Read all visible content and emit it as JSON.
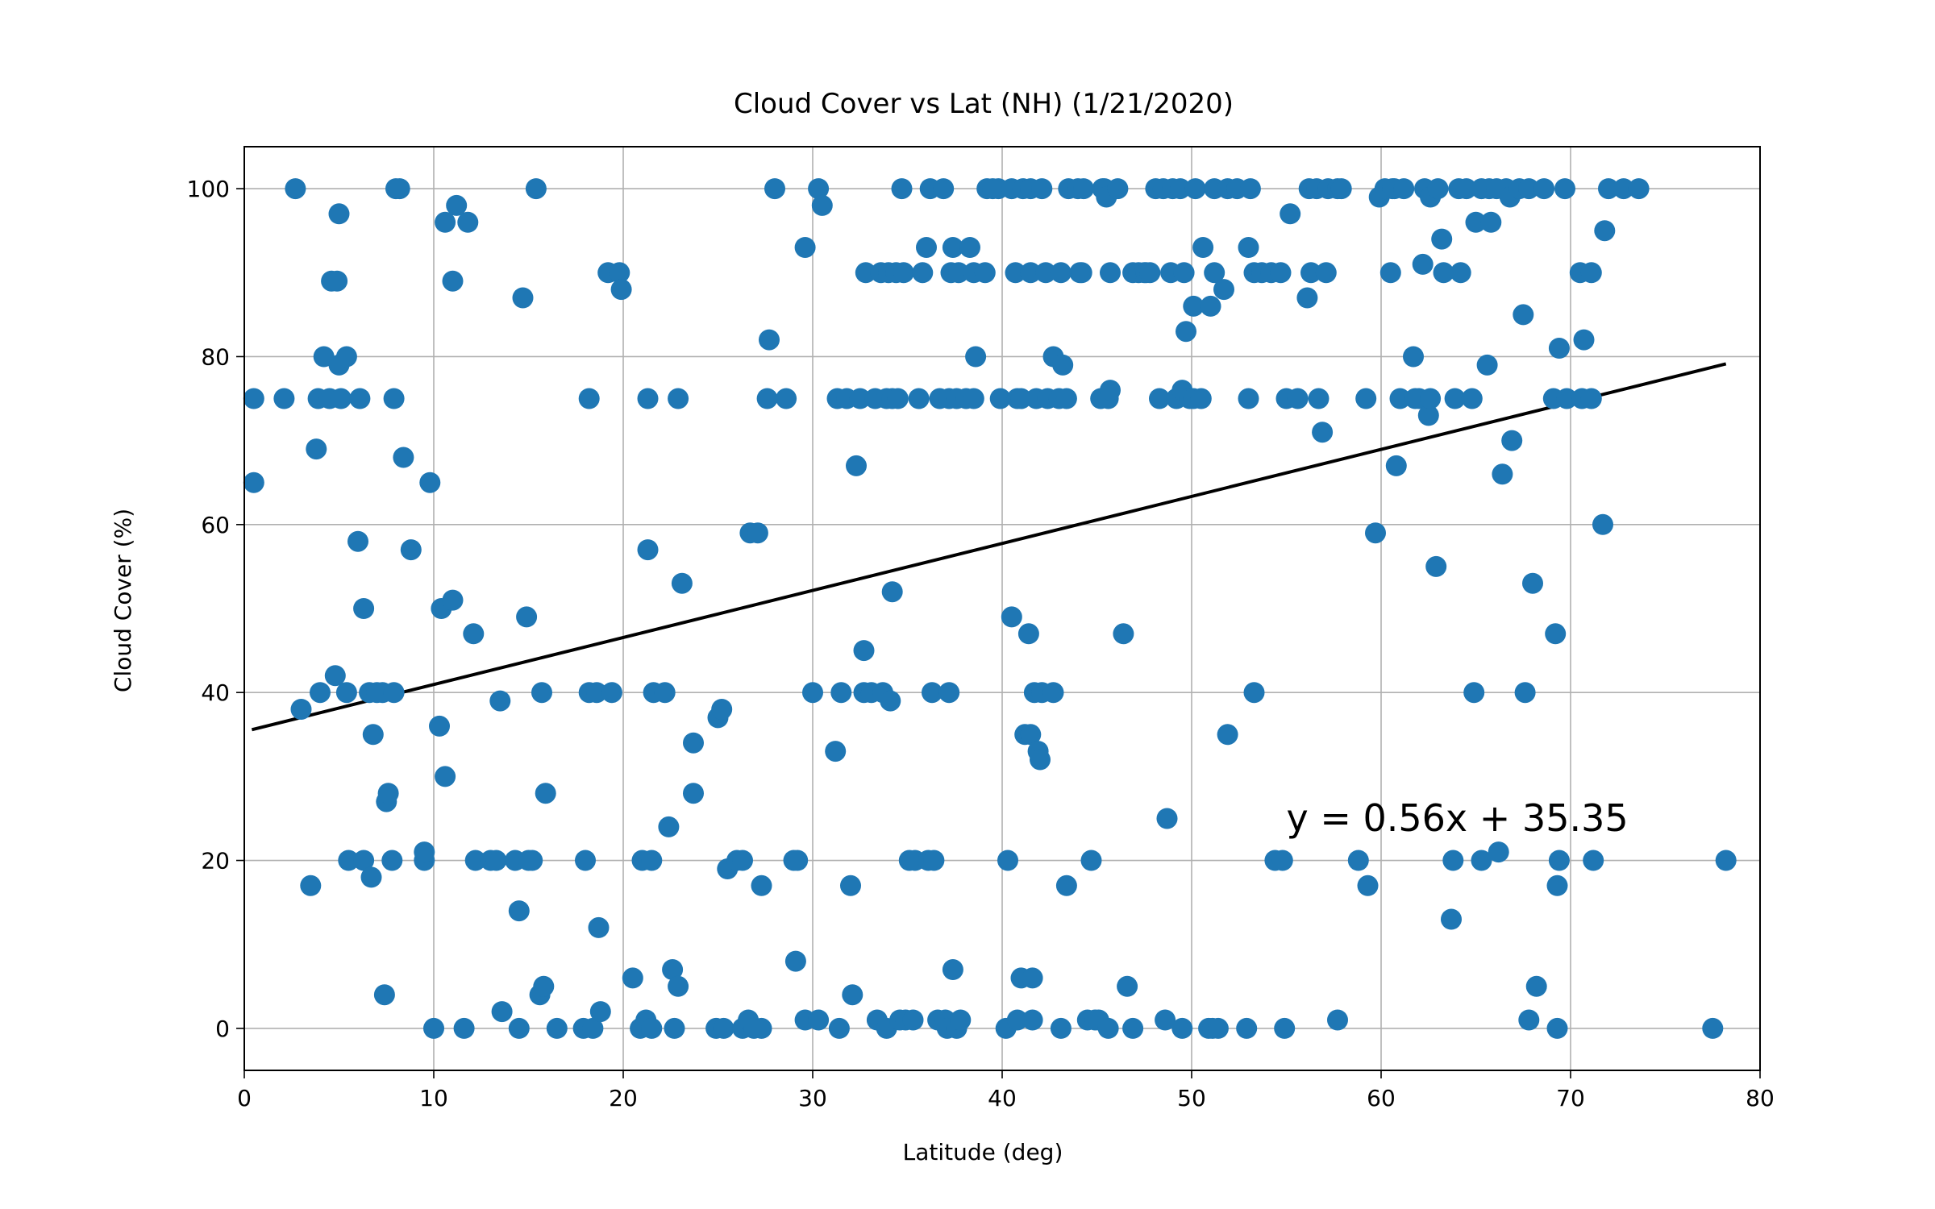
{
  "chart_data": {
    "type": "scatter",
    "title": "Cloud Cover vs Lat (NH) (1/21/2020)",
    "xlabel": "Latitude (deg)",
    "ylabel": "Cloud Cover (%)",
    "xlim": [
      0,
      80
    ],
    "ylim": [
      -5,
      105
    ],
    "xticks": [
      0,
      10,
      20,
      30,
      40,
      50,
      60,
      70,
      80
    ],
    "yticks": [
      0,
      20,
      40,
      60,
      80,
      100
    ],
    "grid": true,
    "point_color": "#1f77b4",
    "line_color": "#000000",
    "regression": {
      "slope": 0.56,
      "intercept": 35.35,
      "x_range": [
        0.4,
        78.2
      ]
    },
    "annotation": {
      "text": "y = 0.56x + 35.35",
      "x": 55,
      "y": 23.5
    },
    "points": [
      [
        0.5,
        75
      ],
      [
        0.5,
        65
      ],
      [
        2.1,
        75
      ],
      [
        2.7,
        100
      ],
      [
        3,
        38
      ],
      [
        3.5,
        17
      ],
      [
        3.8,
        69
      ],
      [
        3.9,
        75
      ],
      [
        4,
        40
      ],
      [
        4.2,
        80
      ],
      [
        4.5,
        75
      ],
      [
        4.6,
        89
      ],
      [
        4.8,
        42
      ],
      [
        4.9,
        89
      ],
      [
        5,
        97
      ],
      [
        5,
        79
      ],
      [
        5.1,
        75
      ],
      [
        5.4,
        80
      ],
      [
        5.4,
        40
      ],
      [
        5.5,
        20
      ],
      [
        6,
        58
      ],
      [
        6.3,
        50
      ],
      [
        6.1,
        75
      ],
      [
        6.3,
        20
      ],
      [
        6.6,
        40
      ],
      [
        6.7,
        18
      ],
      [
        6.8,
        35
      ],
      [
        7,
        40
      ],
      [
        7.3,
        40
      ],
      [
        7.4,
        4
      ],
      [
        7.5,
        27
      ],
      [
        7.6,
        28
      ],
      [
        7.8,
        20
      ],
      [
        7.9,
        40
      ],
      [
        7.9,
        75
      ],
      [
        8,
        100
      ],
      [
        8.2,
        100
      ],
      [
        8.4,
        68
      ],
      [
        8.8,
        57
      ],
      [
        9.5,
        20
      ],
      [
        9.5,
        21
      ],
      [
        9.8,
        65
      ],
      [
        10,
        0
      ],
      [
        10.3,
        36
      ],
      [
        10.4,
        50
      ],
      [
        10.6,
        96
      ],
      [
        10.6,
        30
      ],
      [
        11,
        89
      ],
      [
        11.2,
        98
      ],
      [
        11,
        51
      ],
      [
        11.6,
        0
      ],
      [
        11.8,
        96
      ],
      [
        12.1,
        47
      ],
      [
        12.2,
        20
      ],
      [
        13,
        20
      ],
      [
        13.3,
        20
      ],
      [
        13.5,
        39
      ],
      [
        13.6,
        2
      ],
      [
        14.3,
        20
      ],
      [
        14.5,
        0
      ],
      [
        14.5,
        14
      ],
      [
        14.7,
        87
      ],
      [
        14.9,
        49
      ],
      [
        15,
        20
      ],
      [
        15.2,
        20
      ],
      [
        15.4,
        100
      ],
      [
        15.6,
        4
      ],
      [
        15.7,
        40
      ],
      [
        15.8,
        5
      ],
      [
        15.9,
        28
      ],
      [
        16.5,
        0
      ],
      [
        17.9,
        0
      ],
      [
        18,
        20
      ],
      [
        18.2,
        40
      ],
      [
        18.2,
        75
      ],
      [
        18.4,
        0
      ],
      [
        18.6,
        40
      ],
      [
        18.7,
        12
      ],
      [
        18.8,
        2
      ],
      [
        19.2,
        90
      ],
      [
        19.4,
        40
      ],
      [
        19.8,
        90
      ],
      [
        19.9,
        88
      ],
      [
        20.5,
        6
      ],
      [
        20.9,
        0
      ],
      [
        21,
        20
      ],
      [
        21.2,
        1
      ],
      [
        21.3,
        75
      ],
      [
        21.3,
        57
      ],
      [
        21.5,
        20
      ],
      [
        21.5,
        0
      ],
      [
        21.6,
        40
      ],
      [
        22.2,
        40
      ],
      [
        22.4,
        24
      ],
      [
        22.6,
        7
      ],
      [
        22.7,
        0
      ],
      [
        22.9,
        75
      ],
      [
        22.9,
        5
      ],
      [
        23.1,
        53
      ],
      [
        23.7,
        28
      ],
      [
        23.7,
        34
      ],
      [
        24.9,
        0
      ],
      [
        25,
        37
      ],
      [
        25.2,
        38
      ],
      [
        25.3,
        0
      ],
      [
        25.5,
        19
      ],
      [
        26,
        20
      ],
      [
        26.3,
        20
      ],
      [
        26.3,
        0
      ],
      [
        26.6,
        1
      ],
      [
        26.7,
        59
      ],
      [
        26.9,
        0
      ],
      [
        27.1,
        59
      ],
      [
        27.3,
        0
      ],
      [
        27.3,
        17
      ],
      [
        27.6,
        75
      ],
      [
        27.7,
        82
      ],
      [
        28,
        100
      ],
      [
        28.6,
        75
      ],
      [
        29,
        20
      ],
      [
        29.1,
        8
      ],
      [
        29.2,
        20
      ],
      [
        29.6,
        93
      ],
      [
        29.6,
        1
      ],
      [
        30,
        40
      ],
      [
        30.3,
        1
      ],
      [
        30.3,
        100
      ],
      [
        30.5,
        98
      ],
      [
        31.2,
        33
      ],
      [
        31.3,
        75
      ],
      [
        31.4,
        0
      ],
      [
        31.5,
        40
      ],
      [
        31.8,
        75
      ],
      [
        32,
        17
      ],
      [
        32.1,
        4
      ],
      [
        32.3,
        67
      ],
      [
        32.5,
        75
      ],
      [
        32.7,
        45
      ],
      [
        32.7,
        40
      ],
      [
        32.8,
        90
      ],
      [
        33.1,
        40
      ],
      [
        33.3,
        75
      ],
      [
        33.4,
        1
      ],
      [
        33.6,
        90
      ],
      [
        33.7,
        40
      ],
      [
        33.9,
        75
      ],
      [
        33.9,
        0
      ],
      [
        34,
        90
      ],
      [
        34.1,
        39
      ],
      [
        34.2,
        75
      ],
      [
        34.2,
        52
      ],
      [
        34.4,
        90
      ],
      [
        34.5,
        75
      ],
      [
        34.6,
        1
      ],
      [
        34.7,
        100
      ],
      [
        34.8,
        90
      ],
      [
        34.9,
        1
      ],
      [
        35.1,
        20
      ],
      [
        35.3,
        1
      ],
      [
        35.4,
        20
      ],
      [
        35.6,
        75
      ],
      [
        35.8,
        90
      ],
      [
        36,
        93
      ],
      [
        36.1,
        20
      ],
      [
        36.2,
        100
      ],
      [
        36.3,
        40
      ],
      [
        36.4,
        20
      ],
      [
        36.6,
        1
      ],
      [
        36.7,
        75
      ],
      [
        36.9,
        100
      ],
      [
        37,
        1
      ],
      [
        37.1,
        0
      ],
      [
        37.2,
        40
      ],
      [
        37.2,
        75
      ],
      [
        37.3,
        90
      ],
      [
        37.4,
        93
      ],
      [
        37.4,
        7
      ],
      [
        37.6,
        75
      ],
      [
        37.6,
        0
      ],
      [
        37.7,
        90
      ],
      [
        37.8,
        1
      ],
      [
        38.1,
        75
      ],
      [
        38.3,
        93
      ],
      [
        38.5,
        75
      ],
      [
        38.5,
        90
      ],
      [
        38.6,
        80
      ],
      [
        39.1,
        90
      ],
      [
        39.2,
        100
      ],
      [
        39.5,
        100
      ],
      [
        39.8,
        100
      ],
      [
        39.9,
        75
      ],
      [
        40.2,
        0
      ],
      [
        40.3,
        20
      ],
      [
        40.5,
        100
      ],
      [
        40.5,
        49
      ],
      [
        40.7,
        90
      ],
      [
        40.8,
        75
      ],
      [
        40.8,
        1
      ],
      [
        41,
        75
      ],
      [
        41,
        6
      ],
      [
        41.1,
        100
      ],
      [
        41.2,
        35
      ],
      [
        41.4,
        47
      ],
      [
        41.5,
        100
      ],
      [
        41.5,
        35
      ],
      [
        41.5,
        90
      ],
      [
        41.6,
        6
      ],
      [
        41.6,
        1
      ],
      [
        41.7,
        40
      ],
      [
        41.8,
        75
      ],
      [
        41.9,
        33
      ],
      [
        42,
        32
      ],
      [
        42.1,
        100
      ],
      [
        42.1,
        40
      ],
      [
        42.3,
        90
      ],
      [
        42.4,
        75
      ],
      [
        42.7,
        80
      ],
      [
        42.7,
        40
      ],
      [
        43,
        75
      ],
      [
        43.1,
        0
      ],
      [
        43.1,
        90
      ],
      [
        43.2,
        79
      ],
      [
        43.4,
        75
      ],
      [
        43.4,
        17
      ],
      [
        43.5,
        100
      ],
      [
        44,
        100
      ],
      [
        44.1,
        90
      ],
      [
        44.2,
        90
      ],
      [
        44.3,
        100
      ],
      [
        44.5,
        1
      ],
      [
        44.7,
        20
      ],
      [
        44.9,
        1
      ],
      [
        45.1,
        1
      ],
      [
        45.2,
        75
      ],
      [
        45.3,
        100
      ],
      [
        45.4,
        100
      ],
      [
        45.5,
        99
      ],
      [
        45.6,
        0
      ],
      [
        45.6,
        75
      ],
      [
        45.7,
        76
      ],
      [
        45.7,
        90
      ],
      [
        46.1,
        100
      ],
      [
        46.4,
        47
      ],
      [
        46.6,
        5
      ],
      [
        46.9,
        90
      ],
      [
        46.9,
        0
      ],
      [
        47.2,
        90
      ],
      [
        47.5,
        90
      ],
      [
        47.6,
        90
      ],
      [
        47.8,
        90
      ],
      [
        48.1,
        100
      ],
      [
        48.3,
        75
      ],
      [
        48.5,
        100
      ],
      [
        48.6,
        1
      ],
      [
        48.7,
        25
      ],
      [
        48.9,
        90
      ],
      [
        49,
        100
      ],
      [
        49.2,
        75
      ],
      [
        49.4,
        100
      ],
      [
        49.5,
        76
      ],
      [
        49.5,
        0
      ],
      [
        49.6,
        90
      ],
      [
        49.7,
        83
      ],
      [
        49.9,
        75
      ],
      [
        50.1,
        75
      ],
      [
        50.1,
        86
      ],
      [
        50.2,
        100
      ],
      [
        50.5,
        75
      ],
      [
        50.6,
        93
      ],
      [
        50.9,
        0
      ],
      [
        51,
        86
      ],
      [
        51.1,
        0
      ],
      [
        51.2,
        100
      ],
      [
        51.2,
        90
      ],
      [
        51.4,
        0
      ],
      [
        51.7,
        88
      ],
      [
        51.9,
        35
      ],
      [
        51.9,
        100
      ],
      [
        52.4,
        100
      ],
      [
        52.9,
        0
      ],
      [
        53,
        75
      ],
      [
        53,
        93
      ],
      [
        53.1,
        100
      ],
      [
        53.3,
        40
      ],
      [
        53.3,
        90
      ],
      [
        53.7,
        90
      ],
      [
        54.2,
        90
      ],
      [
        54.4,
        20
      ],
      [
        54.7,
        90
      ],
      [
        54.9,
        0
      ],
      [
        54.8,
        20
      ],
      [
        55,
        75
      ],
      [
        55.2,
        97
      ],
      [
        55.6,
        75
      ],
      [
        56.1,
        87
      ],
      [
        56.2,
        100
      ],
      [
        56.3,
        90
      ],
      [
        56.6,
        100
      ],
      [
        56.7,
        75
      ],
      [
        56.9,
        71
      ],
      [
        57.1,
        90
      ],
      [
        57.2,
        100
      ],
      [
        57.7,
        100
      ],
      [
        57.7,
        1
      ],
      [
        57.9,
        100
      ],
      [
        58.8,
        20
      ],
      [
        59.2,
        75
      ],
      [
        59.3,
        17
      ],
      [
        59.7,
        59
      ],
      [
        59.9,
        99
      ],
      [
        60.2,
        100
      ],
      [
        60.5,
        90
      ],
      [
        60.6,
        100
      ],
      [
        60.7,
        100
      ],
      [
        60.8,
        67
      ],
      [
        61,
        75
      ],
      [
        61.2,
        100
      ],
      [
        61.7,
        80
      ],
      [
        61.8,
        75
      ],
      [
        62,
        75
      ],
      [
        62.2,
        91
      ],
      [
        62.3,
        100
      ],
      [
        62.5,
        73
      ],
      [
        62.6,
        99
      ],
      [
        62.6,
        75
      ],
      [
        62.9,
        55
      ],
      [
        63,
        100
      ],
      [
        63.2,
        94
      ],
      [
        63.3,
        90
      ],
      [
        63.7,
        13
      ],
      [
        63.8,
        20
      ],
      [
        63.9,
        75
      ],
      [
        64.1,
        100
      ],
      [
        64.2,
        90
      ],
      [
        64.5,
        100
      ],
      [
        64.8,
        75
      ],
      [
        64.9,
        40
      ],
      [
        65,
        96
      ],
      [
        65.3,
        20
      ],
      [
        65.3,
        100
      ],
      [
        65.6,
        79
      ],
      [
        65.7,
        100
      ],
      [
        65.8,
        96
      ],
      [
        66.1,
        100
      ],
      [
        66.2,
        21
      ],
      [
        66.4,
        66
      ],
      [
        66.6,
        100
      ],
      [
        66.8,
        99
      ],
      [
        66.9,
        70
      ],
      [
        67.3,
        100
      ],
      [
        67.5,
        85
      ],
      [
        67.6,
        40
      ],
      [
        67.8,
        100
      ],
      [
        67.8,
        1
      ],
      [
        68,
        53
      ],
      [
        68.2,
        5
      ],
      [
        68.6,
        100
      ],
      [
        69.1,
        75
      ],
      [
        69.2,
        47
      ],
      [
        69.3,
        17
      ],
      [
        69.3,
        0
      ],
      [
        69.4,
        20
      ],
      [
        69.4,
        81
      ],
      [
        69.7,
        100
      ],
      [
        69.8,
        75
      ],
      [
        70.5,
        90
      ],
      [
        70.6,
        75
      ],
      [
        70.7,
        82
      ],
      [
        71.1,
        90
      ],
      [
        71.1,
        75
      ],
      [
        71.2,
        20
      ],
      [
        71.7,
        60
      ],
      [
        71.8,
        95
      ],
      [
        72,
        100
      ],
      [
        72.8,
        100
      ],
      [
        73.6,
        100
      ],
      [
        77.5,
        0
      ],
      [
        78.2,
        20
      ]
    ]
  }
}
